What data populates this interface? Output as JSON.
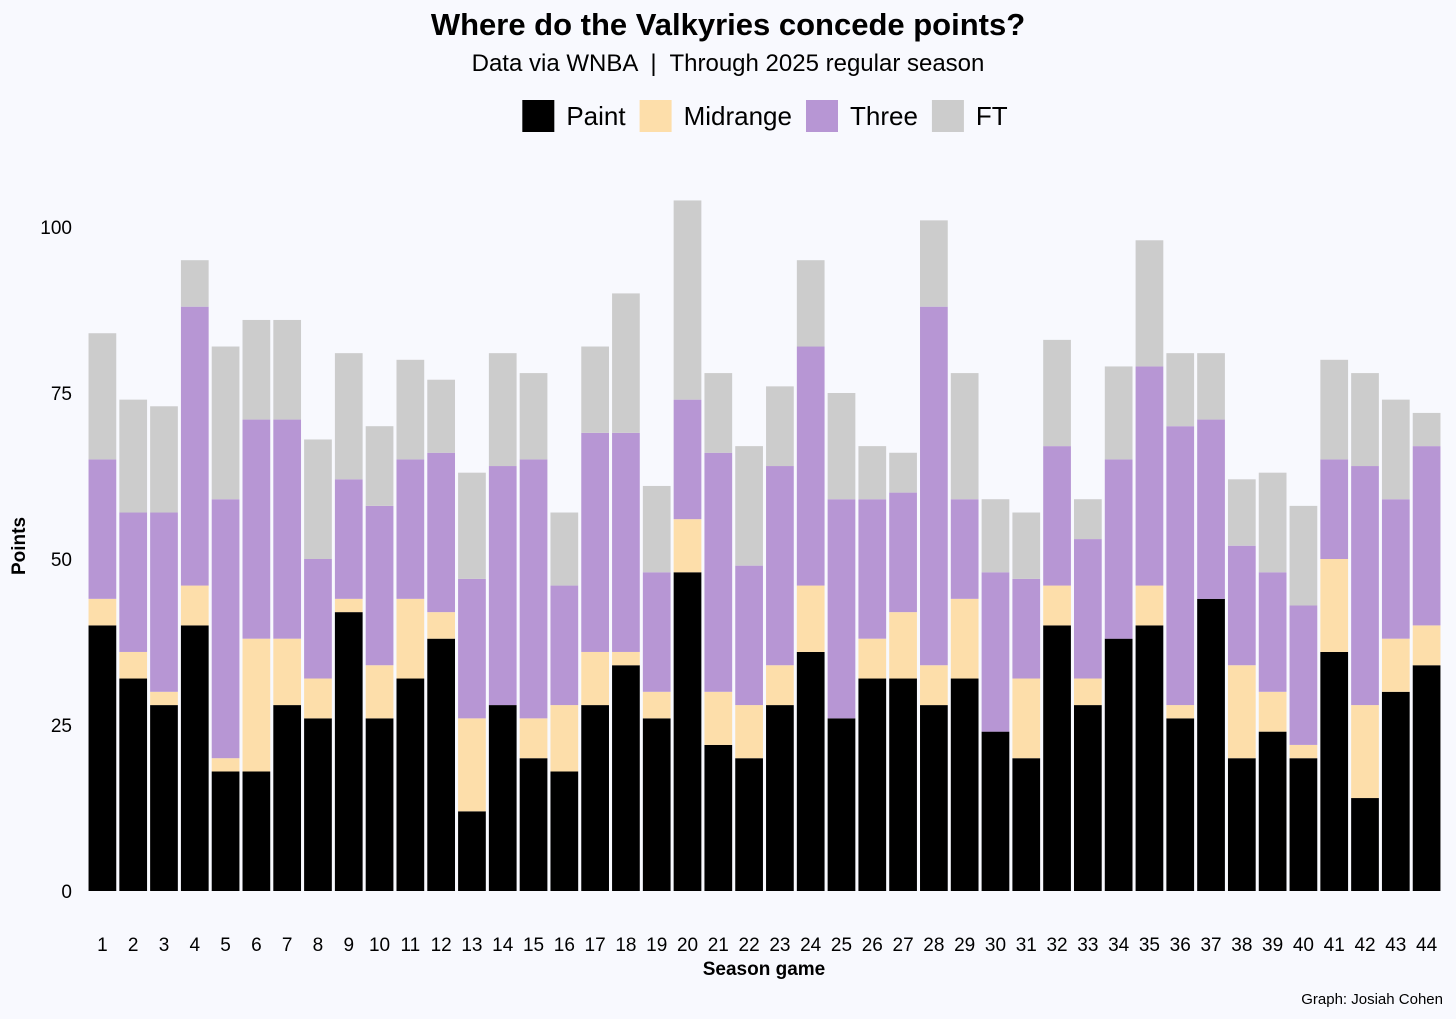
{
  "chart_data": {
    "type": "bar",
    "stacked": true,
    "title": "Where do the Valkyries concede points?",
    "subtitle": "Data via WNBA  |  Through 2025 regular season",
    "xlabel": "Season game",
    "ylabel": "Points",
    "caption": "Graph: Josiah Cohen",
    "legend_position": "top",
    "grid": false,
    "ylim": [
      0,
      105
    ],
    "yticks": [
      0,
      25,
      50,
      75,
      100
    ],
    "categories": [
      "1",
      "2",
      "3",
      "4",
      "5",
      "6",
      "7",
      "8",
      "9",
      "10",
      "11",
      "12",
      "13",
      "14",
      "15",
      "16",
      "17",
      "18",
      "19",
      "20",
      "21",
      "22",
      "23",
      "24",
      "25",
      "26",
      "27",
      "28",
      "29",
      "30",
      "31",
      "32",
      "33",
      "34",
      "35",
      "36",
      "37",
      "38",
      "39",
      "40",
      "41",
      "42",
      "43",
      "44"
    ],
    "series": [
      {
        "name": "Paint",
        "color": "#000000",
        "values": [
          40,
          32,
          28,
          40,
          18,
          18,
          28,
          26,
          42,
          26,
          32,
          38,
          12,
          28,
          20,
          18,
          28,
          34,
          26,
          48,
          22,
          20,
          28,
          36,
          26,
          32,
          32,
          28,
          32,
          24,
          20,
          40,
          28,
          38,
          40,
          26,
          44,
          20,
          24,
          20,
          36,
          14,
          30,
          34
        ]
      },
      {
        "name": "Midrange",
        "color": "#fddeaa",
        "values": [
          4,
          4,
          2,
          6,
          2,
          20,
          10,
          6,
          2,
          8,
          12,
          4,
          14,
          0,
          6,
          10,
          8,
          2,
          4,
          8,
          8,
          8,
          6,
          10,
          0,
          6,
          10,
          6,
          12,
          0,
          12,
          6,
          4,
          0,
          6,
          2,
          0,
          14,
          6,
          2,
          14,
          14,
          8,
          6
        ]
      },
      {
        "name": "Three",
        "color": "#b796d4",
        "values": [
          21,
          21,
          27,
          42,
          39,
          33,
          33,
          18,
          18,
          24,
          21,
          24,
          21,
          36,
          39,
          18,
          33,
          33,
          18,
          18,
          36,
          21,
          30,
          36,
          33,
          21,
          18,
          54,
          15,
          24,
          15,
          21,
          21,
          27,
          33,
          42,
          27,
          18,
          18,
          21,
          15,
          36,
          21,
          27
        ]
      },
      {
        "name": "FT",
        "color": "#cccccc",
        "values": [
          19,
          17,
          16,
          7,
          23,
          15,
          15,
          18,
          19,
          12,
          15,
          11,
          16,
          17,
          13,
          11,
          13,
          21,
          13,
          30,
          12,
          18,
          12,
          13,
          16,
          8,
          6,
          13,
          19,
          11,
          10,
          16,
          6,
          14,
          19,
          11,
          10,
          10,
          15,
          15,
          15,
          14,
          15,
          5
        ]
      }
    ]
  }
}
